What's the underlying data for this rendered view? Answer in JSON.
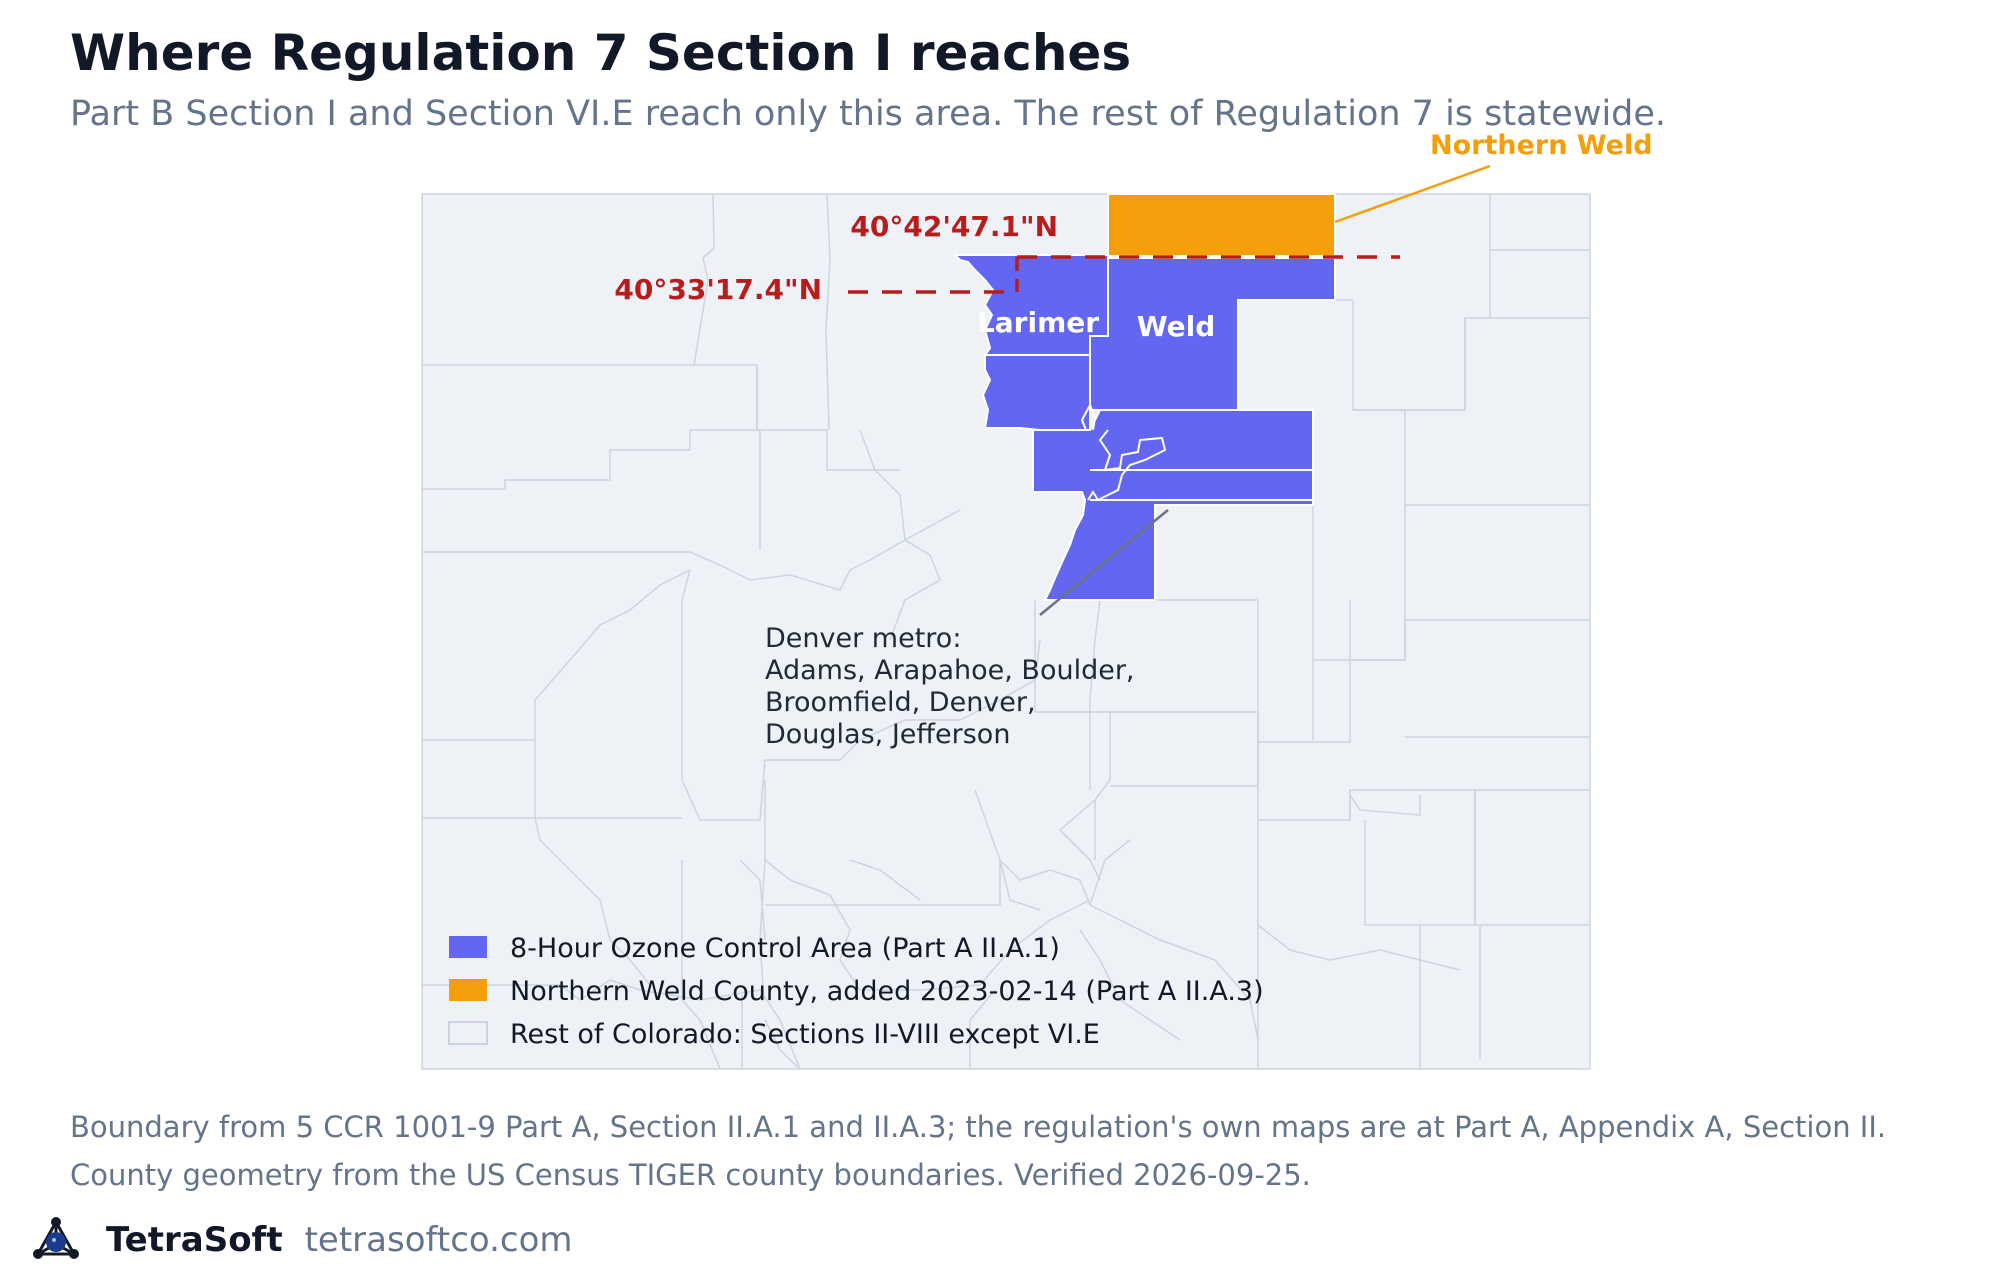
{
  "title": "Where Regulation 7 Section I reaches",
  "subtitle": "Part B Section I and Section VI.E reach only this area. The rest of Regulation 7 is statewide.",
  "map": {
    "labels": {
      "northern_weld": "Northern Weld",
      "larimer": "Larimer",
      "weld": "Weld",
      "lat_north": "40°42'47.1\"N",
      "lat_south": "40°33'17.4\"N",
      "denver_metro": [
        "Denver metro:",
        "Adams, Arapahoe, Boulder,",
        "Broomfield, Denver,",
        "Douglas, Jefferson"
      ]
    },
    "legend": [
      {
        "label": "8-Hour Ozone Control Area (Part A II.A.1)",
        "color": "#6366f1"
      },
      {
        "label": "Northern Weld County, added 2023-02-14 (Part A II.A.3)",
        "color": "#f59e0b"
      },
      {
        "label": "Rest of Colorado: Sections II-VIII except VI.E",
        "color": "#eef1f6"
      }
    ],
    "colors": {
      "control_area": "#6366f1",
      "northern_weld": "#f59e0b",
      "rest_of_state": "#eef1f6",
      "county_border": "#cbd5e1",
      "latitude_line": "#b91c1c",
      "northern_weld_label": "#f59e0b"
    }
  },
  "notes": [
    "Boundary from 5 CCR 1001-9 Part A, Section II.A.1 and II.A.3; the regulation's own maps are at Part A, Appendix A, Section II.",
    "County geometry from the US Census TIGER county boundaries. Verified 2026-09-25."
  ],
  "footer": {
    "brand": "TetraSoft",
    "url": "tetrasoftco.com",
    "logo_icon": "tetrasoft-logo-icon"
  }
}
